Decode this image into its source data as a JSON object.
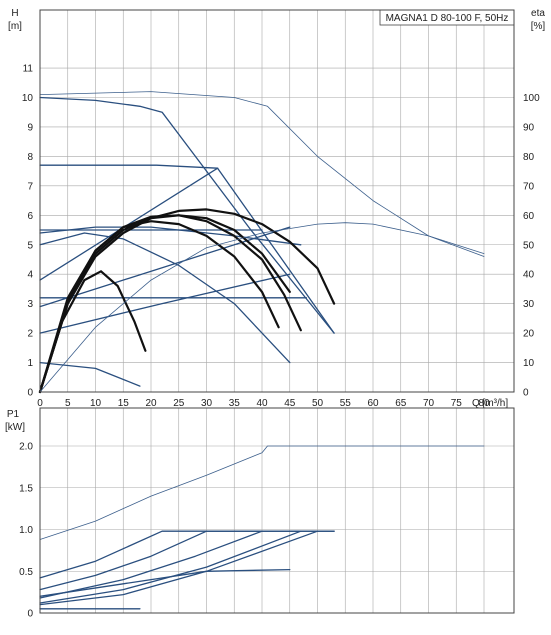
{
  "colors": {
    "primary_curve": "#2a4f7f",
    "thin_curve": "#3c5f8c",
    "black_curve": "#111111",
    "grid": "#a8a8a8",
    "frame": "#444444"
  },
  "chart_data": [
    {
      "id": "qh",
      "type": "line",
      "title": "MAGNA1 D 80-100 F, 50Hz",
      "left_axis": {
        "label_line1": "H",
        "label_line2": "[m]",
        "ylim": [
          0,
          11.6
        ],
        "ticks": [
          0,
          1,
          2,
          3,
          4,
          5,
          6,
          7,
          8,
          9,
          10,
          11
        ]
      },
      "right_axis": {
        "label_line1": "eta",
        "label_line2": "[%]",
        "ylim": [
          0,
          116
        ],
        "ticks": [
          0,
          10,
          20,
          30,
          40,
          50,
          60,
          70,
          80,
          90,
          100
        ]
      },
      "x_axis": {
        "label": "Q [m³/h]",
        "xlim": [
          0,
          86
        ],
        "ticks": [
          0,
          5,
          10,
          15,
          20,
          25,
          30,
          35,
          40,
          45,
          50,
          55,
          60,
          65,
          70,
          75,
          80
        ]
      },
      "grid": true,
      "series": [
        {
          "style": "primary",
          "points": [
            [
              0,
              10.0
            ],
            [
              10,
              9.9
            ],
            [
              18,
              9.7
            ],
            [
              22,
              9.5
            ],
            [
              38,
              5.5
            ],
            [
              53,
              2.0
            ]
          ]
        },
        {
          "style": "primary",
          "points": [
            [
              0,
              7.7
            ],
            [
              21,
              7.7
            ],
            [
              32,
              7.6
            ]
          ]
        },
        {
          "style": "primary",
          "points": [
            [
              0,
              3.8
            ],
            [
              32,
              7.6
            ]
          ]
        },
        {
          "style": "primary",
          "points": [
            [
              32,
              7.6
            ],
            [
              53,
              2.0
            ]
          ]
        },
        {
          "style": "primary",
          "points": [
            [
              0,
              5.5
            ],
            [
              40,
              5.5
            ]
          ]
        },
        {
          "style": "primary",
          "points": [
            [
              0,
              5.4
            ],
            [
              10,
              5.6
            ],
            [
              20,
              5.6
            ],
            [
              35,
              5.3
            ],
            [
              47,
              5.0
            ]
          ]
        },
        {
          "style": "primary",
          "points": [
            [
              0,
              2.9
            ],
            [
              45,
              5.6
            ]
          ]
        },
        {
          "style": "primary",
          "points": [
            [
              0,
              3.2
            ],
            [
              48,
              3.2
            ]
          ]
        },
        {
          "style": "primary",
          "points": [
            [
              0,
              2.0
            ],
            [
              22,
              3.0
            ],
            [
              45,
              4.0
            ]
          ]
        },
        {
          "style": "primary",
          "points": [
            [
              0,
              5.0
            ],
            [
              8,
              5.4
            ],
            [
              15,
              5.2
            ],
            [
              25,
              4.3
            ],
            [
              35,
              3.0
            ],
            [
              45,
              1.0
            ]
          ]
        },
        {
          "style": "primary",
          "points": [
            [
              0,
              1.0
            ],
            [
              10,
              0.8
            ],
            [
              18,
              0.2
            ]
          ]
        },
        {
          "style": "black",
          "points": [
            [
              0,
              0
            ],
            [
              5,
              3.0
            ],
            [
              10,
              4.6
            ],
            [
              15,
              5.4
            ],
            [
              20,
              5.9
            ],
            [
              25,
              6.15
            ],
            [
              30,
              6.2
            ],
            [
              35,
              6.05
            ],
            [
              40,
              5.7
            ],
            [
              45,
              5.1
            ],
            [
              50,
              4.2
            ],
            [
              53,
              3.0
            ]
          ]
        },
        {
          "style": "black",
          "points": [
            [
              0,
              0
            ],
            [
              5,
              3.1
            ],
            [
              10,
              4.8
            ],
            [
              15,
              5.6
            ],
            [
              20,
              5.95
            ],
            [
              25,
              6.0
            ],
            [
              30,
              5.8
            ],
            [
              35,
              5.3
            ],
            [
              40,
              4.5
            ],
            [
              44,
              3.3
            ],
            [
              47,
              2.1
            ]
          ]
        },
        {
          "style": "black",
          "points": [
            [
              0,
              0
            ],
            [
              5,
              3.0
            ],
            [
              10,
              4.7
            ],
            [
              15,
              5.5
            ],
            [
              20,
              5.9
            ],
            [
              25,
              6.0
            ],
            [
              30,
              5.9
            ],
            [
              35,
              5.5
            ],
            [
              40,
              4.7
            ],
            [
              45,
              3.4
            ]
          ]
        },
        {
          "style": "black",
          "points": [
            [
              0,
              0
            ],
            [
              5,
              3.2
            ],
            [
              10,
              4.8
            ],
            [
              15,
              5.6
            ],
            [
              20,
              5.8
            ],
            [
              25,
              5.7
            ],
            [
              30,
              5.3
            ],
            [
              35,
              4.6
            ],
            [
              40,
              3.4
            ],
            [
              43,
              2.2
            ]
          ]
        },
        {
          "style": "black",
          "points": [
            [
              0,
              0
            ],
            [
              4,
              2.4
            ],
            [
              8,
              3.8
            ],
            [
              11,
              4.1
            ],
            [
              14,
              3.6
            ],
            [
              17,
              2.4
            ],
            [
              19,
              1.4
            ]
          ]
        },
        {
          "style": "thin",
          "points": [
            [
              0,
              10.1
            ],
            [
              20,
              10.2
            ],
            [
              35,
              10.0
            ],
            [
              41,
              9.7
            ],
            [
              50,
              8.0
            ],
            [
              60,
              6.5
            ],
            [
              70,
              5.3
            ],
            [
              80,
              4.6
            ]
          ]
        },
        {
          "style": "thin",
          "points": [
            [
              0,
              0
            ],
            [
              10,
              2.2
            ],
            [
              20,
              3.8
            ],
            [
              30,
              4.9
            ],
            [
              40,
              5.4
            ],
            [
              50,
              5.7
            ],
            [
              55,
              5.75
            ],
            [
              60,
              5.7
            ],
            [
              70,
              5.3
            ],
            [
              80,
              4.7
            ]
          ]
        }
      ]
    },
    {
      "id": "p1",
      "type": "line",
      "left_axis": {
        "label_line1": "P1",
        "label_line2": "[kW]",
        "ylim": [
          0,
          2.3
        ],
        "ticks": [
          0,
          0.5,
          1.0,
          1.5,
          2.0
        ],
        "tick_labels": [
          "0",
          "0.5",
          "1.0",
          "1.5",
          "2.0"
        ]
      },
      "xlim": [
        0,
        86
      ],
      "x_ticks": [
        0,
        5,
        10,
        15,
        20,
        25,
        30,
        35,
        40,
        45,
        50,
        55,
        60,
        65,
        70,
        75,
        80
      ],
      "grid": true,
      "series": [
        {
          "style": "thin",
          "points": [
            [
              0,
              0.88
            ],
            [
              10,
              1.1
            ],
            [
              20,
              1.4
            ],
            [
              30,
              1.65
            ],
            [
              40,
              1.92
            ],
            [
              41,
              2.0
            ],
            [
              60,
              2.0
            ],
            [
              80,
              2.0
            ]
          ]
        },
        {
          "style": "primary",
          "points": [
            [
              0,
              0.42
            ],
            [
              10,
              0.62
            ],
            [
              22,
              0.98
            ],
            [
              53,
              0.98
            ]
          ]
        },
        {
          "style": "primary",
          "points": [
            [
              0,
              0.28
            ],
            [
              10,
              0.45
            ],
            [
              20,
              0.68
            ],
            [
              30,
              0.98
            ],
            [
              53,
              0.98
            ]
          ]
        },
        {
          "style": "primary",
          "points": [
            [
              0,
              0.18
            ],
            [
              15,
              0.4
            ],
            [
              28,
              0.68
            ],
            [
              40,
              0.98
            ]
          ]
        },
        {
          "style": "primary",
          "points": [
            [
              0,
              0.12
            ],
            [
              15,
              0.28
            ],
            [
              30,
              0.55
            ],
            [
              47,
              0.98
            ]
          ]
        },
        {
          "style": "primary",
          "points": [
            [
              0,
              0.1
            ],
            [
              15,
              0.22
            ],
            [
              30,
              0.5
            ],
            [
              50,
              0.98
            ]
          ]
        },
        {
          "style": "primary",
          "points": [
            [
              0,
              0.2
            ],
            [
              15,
              0.35
            ],
            [
              30,
              0.5
            ],
            [
              45,
              0.52
            ]
          ]
        },
        {
          "style": "primary",
          "points": [
            [
              0,
              0.05
            ],
            [
              18,
              0.05
            ]
          ]
        }
      ]
    }
  ]
}
